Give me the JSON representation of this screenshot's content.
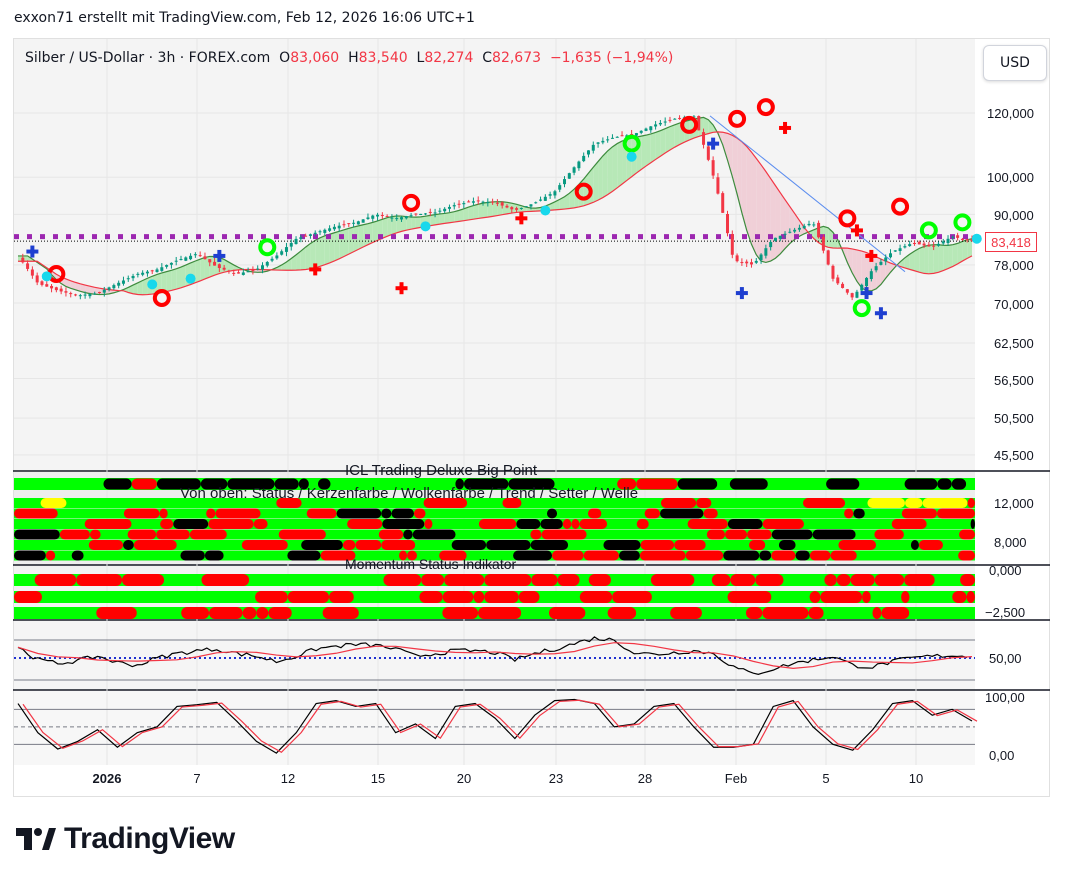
{
  "header": {
    "caption": "exxon71 erstellt mit TradingView.com, Feb 12, 2026 16:06 UTC+1"
  },
  "legend": {
    "symbol": "Silber / US-Dollar · 3h · FOREX.com",
    "o_label": "O",
    "o": "83,060",
    "h_label": "H",
    "h": "83,540",
    "l_label": "L",
    "l": "82,274",
    "c_label": "C",
    "c": "82,673",
    "change": "−1,635 (−1,94%)"
  },
  "currency_button": "USD",
  "price_axis": {
    "scale": "log",
    "labels": [
      "120,000",
      "100,000",
      "90,000",
      "78,000",
      "70,000",
      "62,500",
      "56,500",
      "50,500",
      "45,500"
    ],
    "values": [
      120000,
      100000,
      90000,
      78000,
      70000,
      62500,
      56500,
      50500,
      45500
    ],
    "last_price": "83,418",
    "last_price_value": 83418,
    "level_line": 84500
  },
  "time_axis": [
    "2026",
    "7",
    "12",
    "15",
    "20",
    "23",
    "28",
    "Feb",
    "5",
    "10"
  ],
  "indicators": {
    "big_point": {
      "title": "ICL Trading Deluxe Big Point",
      "subtitle": "Von oben: Status / Kerzenfarbe / Wolkenfarbe / Trend / Setter / Welle",
      "axis": [
        "12,000",
        "8,000"
      ]
    },
    "momentum": {
      "title": "Momentum Status Indikator",
      "axis": [
        "0,000",
        "−2,500"
      ]
    },
    "rsi": {
      "axis": [
        "50,00"
      ]
    },
    "stoch": {
      "axis": [
        "100,00",
        "0,00"
      ]
    }
  },
  "colors": {
    "up": "#089981",
    "down": "#f23645",
    "cloud_up": "#b7e8b7",
    "cloud_down": "#f0cfd7",
    "green": "#00ff00",
    "red": "#ff0000",
    "black": "#000000",
    "yellow": "#ffff00",
    "purple": "#9c27b0",
    "trend": "#5b8def"
  },
  "chart_data": {
    "type": "candlestick",
    "closes": [
      80000,
      74000,
      72500,
      71500,
      72000,
      74000,
      76000,
      77000,
      79000,
      80500,
      77500,
      76000,
      77000,
      80000,
      84000,
      85500,
      87000,
      88000,
      90000,
      89000,
      90000,
      90500,
      92500,
      93500,
      93000,
      91000,
      93000,
      96000,
      103000,
      110000,
      112000,
      113000,
      116000,
      118000,
      119000,
      100000,
      79000,
      78000,
      84000,
      86000,
      88000,
      75000,
      71000,
      77000,
      81000,
      83000,
      82000,
      84500,
      83418
    ],
    "rsi": [
      62,
      48,
      44,
      47,
      52,
      45,
      42,
      50,
      55,
      58,
      60,
      55,
      52,
      46,
      52,
      60,
      63,
      65,
      64,
      60,
      52,
      55,
      58,
      58,
      56,
      48,
      55,
      60,
      66,
      72,
      70,
      56,
      54,
      56,
      58,
      55,
      40,
      32,
      38,
      44,
      48,
      52,
      42,
      40,
      46,
      50,
      52,
      53,
      51
    ],
    "stoch": [
      90,
      40,
      12,
      25,
      45,
      15,
      40,
      50,
      85,
      88,
      92,
      60,
      25,
      5,
      40,
      90,
      95,
      85,
      90,
      40,
      55,
      30,
      85,
      90,
      65,
      30,
      70,
      95,
      97,
      90,
      50,
      55,
      85,
      90,
      50,
      15,
      15,
      20,
      85,
      95,
      50,
      20,
      10,
      45,
      90,
      95,
      70,
      80,
      60
    ]
  }
}
